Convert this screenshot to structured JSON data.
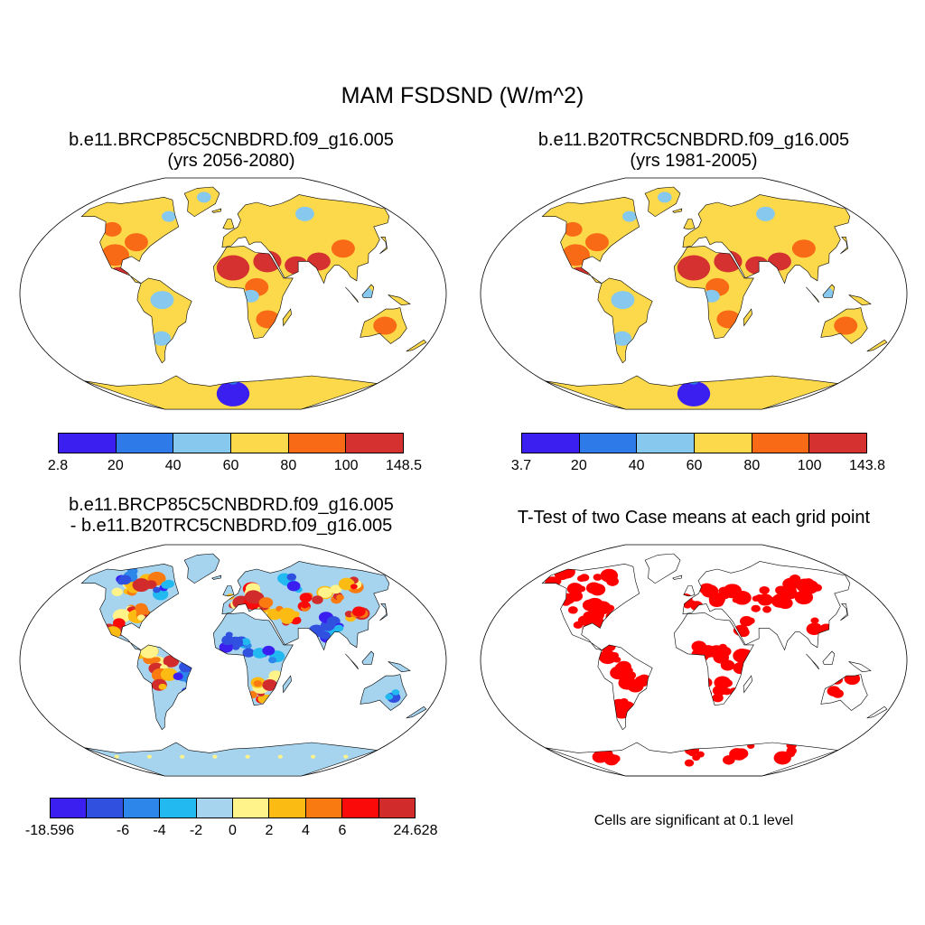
{
  "main_title": "MAM FSDSND (W/m^2)",
  "panels": {
    "top_left": {
      "title_line1": "b.e11.BRCP85C5CNBDRD.f09_g16.005",
      "title_line2": "(yrs 2056-2080)",
      "colorbar": {
        "colors": [
          "#3a1ff0",
          "#2d7ae8",
          "#86c8ee",
          "#fcd94a",
          "#f86a16",
          "#d63131"
        ],
        "tick_labels": [
          "2.8",
          "20",
          "40",
          "60",
          "80",
          "100",
          "148.5"
        ]
      }
    },
    "top_right": {
      "title_line1": "b.e11.B20TRC5CNBDRD.f09_g16.005",
      "title_line2": "(yrs 1981-2005)",
      "colorbar": {
        "colors": [
          "#3a1ff0",
          "#2d7ae8",
          "#86c8ee",
          "#fcd94a",
          "#f86a16",
          "#d63131"
        ],
        "tick_labels": [
          "3.7",
          "20",
          "40",
          "60",
          "80",
          "100",
          "143.8"
        ]
      }
    },
    "bottom_left": {
      "title_line1": "b.e11.BRCP85C5CNBDRD.f09_g16.005",
      "title_line2": "- b.e11.B20TRC5CNBDRD.f09_g16.005",
      "colorbar": {
        "colors": [
          "#3a1ff0",
          "#3050e0",
          "#2d86ea",
          "#22b8f0",
          "#a6d4ee",
          "#fff38a",
          "#fcbb12",
          "#fa7a12",
          "#fb0a0a",
          "#d12b2b"
        ],
        "tick_labels": [
          "-18.596",
          "-6",
          "-4",
          "-2",
          "0",
          "2",
          "4",
          "6",
          "24.628"
        ]
      }
    },
    "bottom_right": {
      "title": "T-Test of two Case means at each grid point",
      "caption": "Cells are significant at 0.1 level",
      "fill_color": "#ff0000"
    }
  }
}
